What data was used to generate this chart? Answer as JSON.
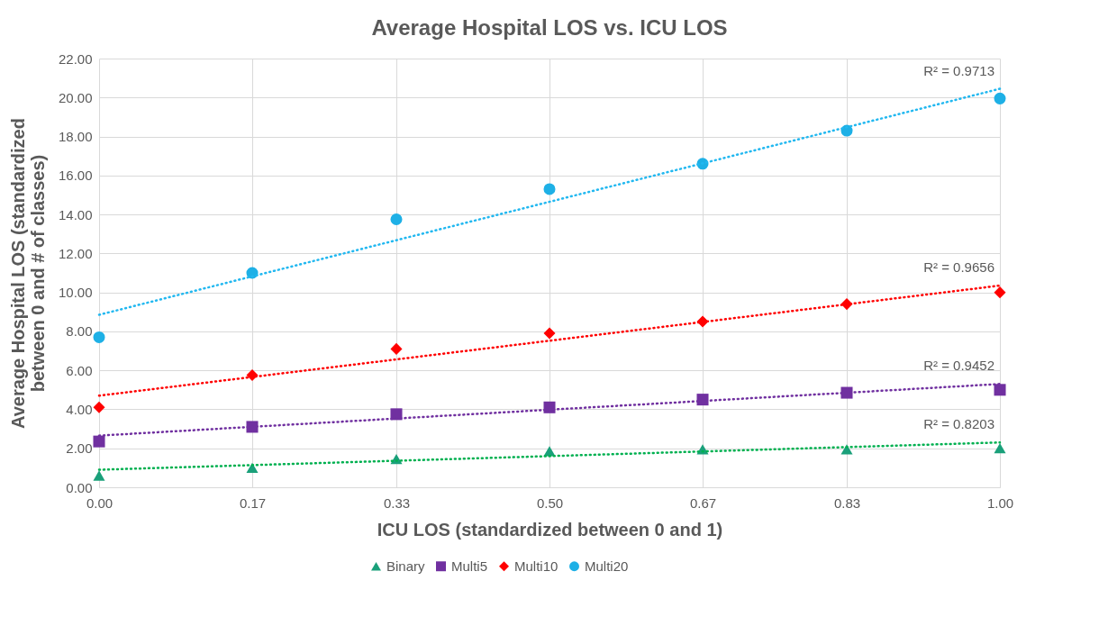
{
  "chart_data": {
    "type": "scatter",
    "title": "Average Hospital LOS vs. ICU LOS",
    "xlabel": "ICU LOS (standardized between 0 and 1)",
    "ylabel": "Average Hospital LOS (standardized between 0 and # of classes)",
    "x": [
      0,
      0.17,
      0.33,
      0.5,
      0.67,
      0.83,
      1
    ],
    "series": [
      {
        "name": "Binary",
        "color": "#1aa07a",
        "marker": "triangle",
        "values": [
          0.6,
          1.0,
          1.45,
          1.85,
          1.95,
          1.95,
          2.0
        ]
      },
      {
        "name": "Multi5",
        "color": "#7030a0",
        "marker": "square",
        "values": [
          2.35,
          3.1,
          3.75,
          4.1,
          4.5,
          4.85,
          5.0
        ]
      },
      {
        "name": "Multi10",
        "color": "#ff0000",
        "marker": "diamond",
        "values": [
          4.1,
          5.75,
          7.1,
          7.9,
          8.5,
          9.4,
          10.0
        ]
      },
      {
        "name": "Multi20",
        "color": "#1eb0e6",
        "marker": "circle",
        "values": [
          7.7,
          11.0,
          13.75,
          15.3,
          16.6,
          18.3,
          19.95
        ]
      },
      {
        "type": "line",
        "color": "#00b050",
        "line_style": "dotted",
        "x": [
          0,
          0.5,
          1
        ],
        "values": [
          0.9,
          1.6,
          2.3
        ]
      },
      {
        "type": "line",
        "color": "#7030a0",
        "line_style": "dotted",
        "x": [
          0,
          0.5,
          1
        ],
        "values": [
          2.65,
          3.98,
          5.3
        ]
      },
      {
        "type": "line",
        "color": "#ff0000",
        "line_style": "dotted",
        "x": [
          0,
          0.5,
          1
        ],
        "values": [
          4.7,
          7.52,
          10.35
        ]
      },
      {
        "type": "line",
        "color": "#22b8f0",
        "line_style": "dotted",
        "x": [
          0,
          0.5,
          1
        ],
        "values": [
          8.85,
          14.65,
          20.45
        ]
      }
    ],
    "annotations": [
      "R² = 0.8203",
      "R² = 0.9452",
      "R² = 0.9656",
      "R² = 0.9713"
    ],
    "xlim": [
      0,
      1
    ],
    "xticks": [
      {
        "value": 0,
        "label": "0.00"
      },
      {
        "value": 0.17,
        "label": "0.17"
      },
      {
        "value": 0.33,
        "label": "0.33"
      },
      {
        "value": 0.5,
        "label": "0.50"
      },
      {
        "value": 0.67,
        "label": "0.67"
      },
      {
        "value": 0.83,
        "label": "0.83"
      },
      {
        "value": 1,
        "label": "1.00"
      }
    ],
    "ylim": [
      0,
      22
    ],
    "yticks": [
      {
        "value": 0,
        "label": "0.00"
      },
      {
        "value": 2,
        "label": "2.00"
      },
      {
        "value": 4,
        "label": "4.00"
      },
      {
        "value": 6,
        "label": "6.00"
      },
      {
        "value": 8,
        "label": "8.00"
      },
      {
        "value": 10,
        "label": "10.00"
      },
      {
        "value": 12,
        "label": "12.00"
      },
      {
        "value": 14,
        "label": "14.00"
      },
      {
        "value": 16,
        "label": "16.00"
      },
      {
        "value": 18,
        "label": "18.00"
      },
      {
        "value": 20,
        "label": "20.00"
      },
      {
        "value": 22,
        "label": "22.00"
      }
    ],
    "grid": true,
    "legend": "bottom"
  }
}
